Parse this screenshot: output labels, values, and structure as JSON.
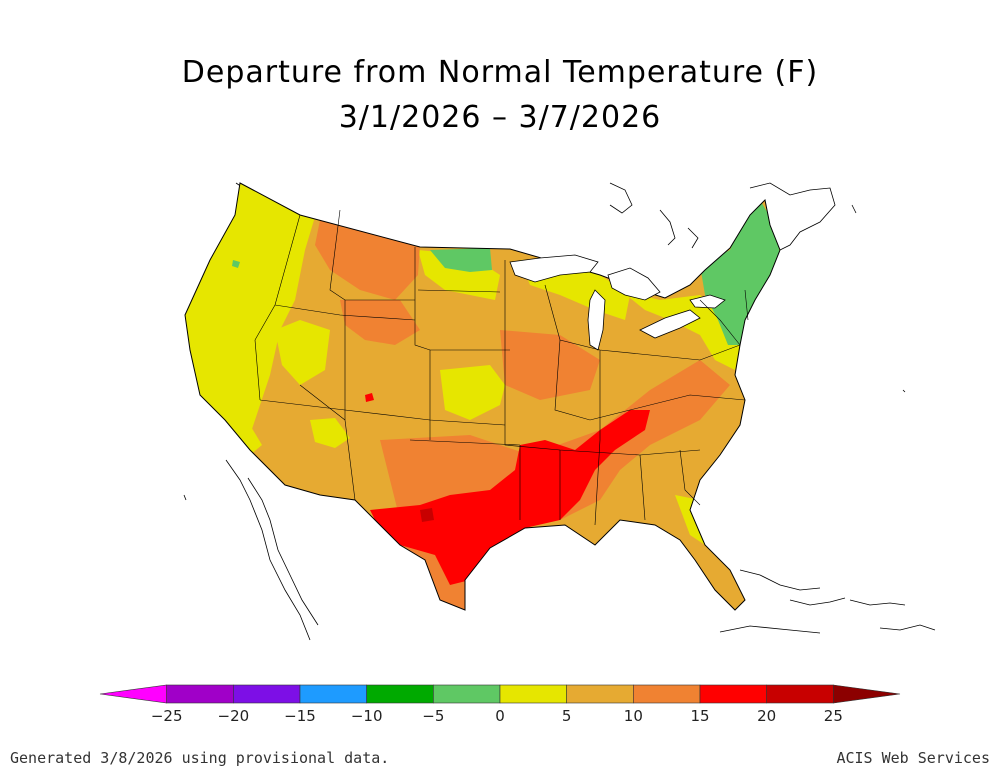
{
  "title": "Departure from Normal Temperature (F)",
  "subtitle": "3/1/2026 – 3/7/2026",
  "colorbar": {
    "ticks": [
      "−25",
      "−20",
      "−15",
      "−10",
      "−5",
      "0",
      "5",
      "10",
      "15",
      "20",
      "25"
    ],
    "colors": [
      "#ff00ff",
      "#a000c8",
      "#7d0fe6",
      "#1e9bff",
      "#00aa00",
      "#5fc864",
      "#e6e600",
      "#e6aa32",
      "#f08232",
      "#ff0000",
      "#c80000",
      "#8c0000"
    ]
  },
  "footer": {
    "left": "Generated 3/8/2026 using provisional data.",
    "right": "ACIS Web Services"
  }
}
